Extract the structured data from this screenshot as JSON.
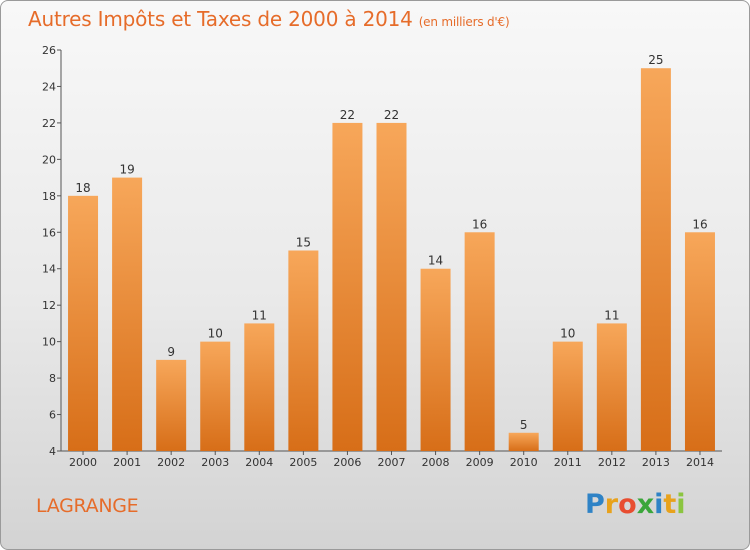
{
  "title": "Autres Impôts et Taxes de 2000 à 2014",
  "subtitle": "(en milliers d'€)",
  "commune": "LAGRANGE",
  "logo": {
    "letters": [
      "P",
      "r",
      "o",
      "x",
      "i",
      "t",
      "i"
    ],
    "colors": [
      "#2f83c6",
      "#e8a21c",
      "#e84d30",
      "#3aa63a",
      "#2f83c6",
      "#e8a21c",
      "#8bc540"
    ]
  },
  "colors": {
    "bar_top": "#f7a75a",
    "bar_bottom": "#d76e18",
    "accent": "#e66c2a"
  },
  "chart_data": {
    "type": "bar",
    "categories": [
      "2000",
      "2001",
      "2002",
      "2003",
      "2004",
      "2005",
      "2006",
      "2007",
      "2008",
      "2009",
      "2010",
      "2011",
      "2012",
      "2013",
      "2014"
    ],
    "values": [
      18,
      19,
      9,
      10,
      11,
      15,
      22,
      22,
      14,
      16,
      5,
      10,
      11,
      25,
      16
    ],
    "ylim": [
      4,
      26
    ],
    "yticks": [
      4,
      6,
      8,
      10,
      12,
      14,
      16,
      18,
      20,
      22,
      24,
      26
    ],
    "grid": false,
    "legend": "none"
  }
}
